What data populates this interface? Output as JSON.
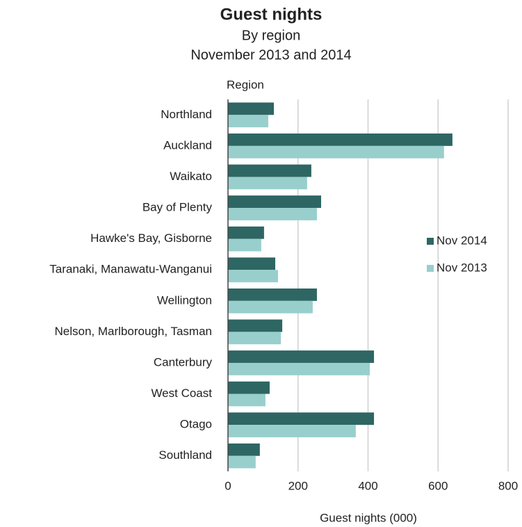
{
  "chart_data": {
    "type": "barh",
    "title": "Guest nights",
    "subtitle": [
      "By region",
      "November 2013 and 2014"
    ],
    "y_axis_label": "Region",
    "x_axis_label": "Guest nights (000)",
    "categories": [
      "Northland",
      "Auckland",
      "Waikato",
      "Bay of Plenty",
      "Hawke's Bay, Gisborne",
      "Taranaki, Manawatu-Wanganui",
      "Wellington",
      "Nelson, Marlborough, Tasman",
      "Canterbury",
      "West Coast",
      "Otago",
      "Southland"
    ],
    "series": [
      {
        "name": "Nov 2014",
        "color": "#2e6663",
        "values": [
          131,
          641,
          238,
          266,
          103,
          135,
          254,
          155,
          417,
          119,
          417,
          91
        ]
      },
      {
        "name": "Nov 2013",
        "color": "#98cfcc",
        "values": [
          115,
          617,
          226,
          254,
          95,
          143,
          242,
          151,
          405,
          107,
          365,
          79
        ]
      }
    ],
    "xlim": [
      0,
      800
    ],
    "xticks": [
      0,
      200,
      400,
      600,
      800
    ],
    "grid": true,
    "legend": "right"
  }
}
